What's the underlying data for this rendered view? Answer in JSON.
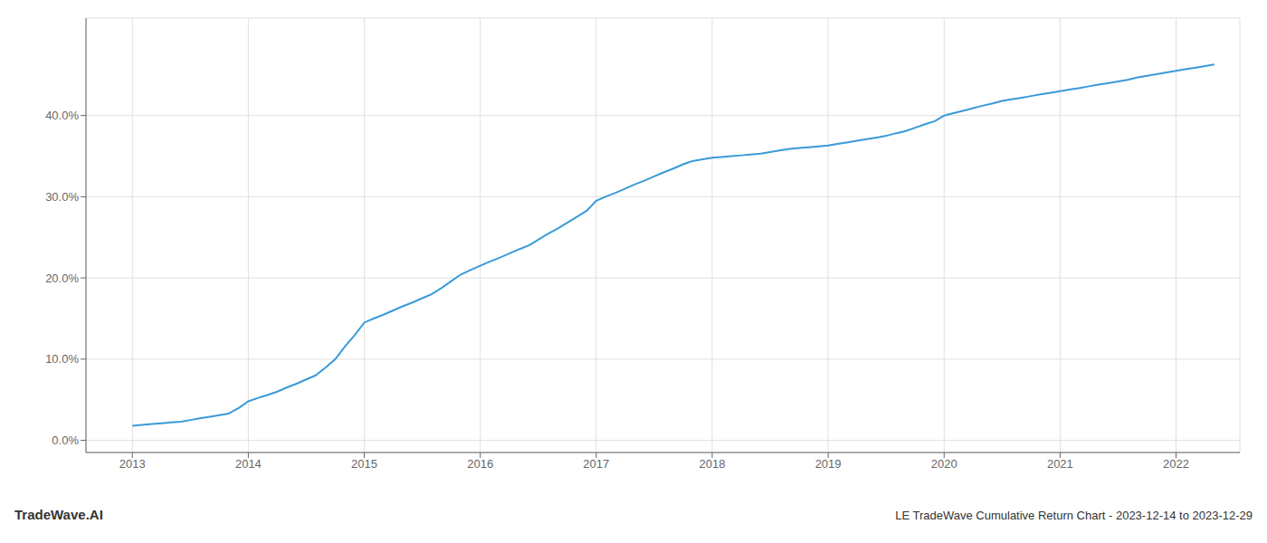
{
  "chart_data": {
    "type": "line",
    "title": "LE TradeWave Cumulative Return Chart - 2023-12-14 to 2023-12-29",
    "annotations": [
      "TradeWave.AI"
    ],
    "x": [
      2013.0,
      2013.08,
      2013.17,
      2013.25,
      2013.33,
      2013.42,
      2013.5,
      2013.58,
      2013.67,
      2013.75,
      2013.83,
      2013.92,
      2014.0,
      2014.08,
      2014.17,
      2014.25,
      2014.33,
      2014.42,
      2014.5,
      2014.58,
      2014.67,
      2014.75,
      2014.83,
      2014.92,
      2015.0,
      2015.08,
      2015.17,
      2015.25,
      2015.33,
      2015.42,
      2015.5,
      2015.58,
      2015.67,
      2015.75,
      2015.83,
      2015.92,
      2016.0,
      2016.08,
      2016.17,
      2016.25,
      2016.33,
      2016.42,
      2016.5,
      2016.58,
      2016.67,
      2016.75,
      2016.83,
      2016.92,
      2017.0,
      2017.08,
      2017.17,
      2017.25,
      2017.33,
      2017.42,
      2017.5,
      2017.58,
      2017.67,
      2017.75,
      2017.83,
      2017.92,
      2018.0,
      2018.08,
      2018.17,
      2018.25,
      2018.33,
      2018.42,
      2018.5,
      2018.58,
      2018.67,
      2018.75,
      2018.83,
      2018.92,
      2019.0,
      2019.08,
      2019.17,
      2019.25,
      2019.33,
      2019.42,
      2019.5,
      2019.58,
      2019.67,
      2019.75,
      2019.83,
      2019.92,
      2020.0,
      2020.08,
      2020.17,
      2020.25,
      2020.33,
      2020.42,
      2020.5,
      2020.58,
      2020.67,
      2020.75,
      2020.83,
      2020.92,
      2021.0,
      2021.08,
      2021.17,
      2021.25,
      2021.33,
      2021.42,
      2021.5,
      2021.58,
      2021.67,
      2021.75,
      2021.83,
      2021.92,
      2022.0,
      2022.08,
      2022.17,
      2022.25,
      2022.33
    ],
    "values": [
      0.018,
      0.019,
      0.02,
      0.021,
      0.022,
      0.023,
      0.025,
      0.027,
      0.029,
      0.031,
      0.033,
      0.04,
      0.048,
      0.052,
      0.056,
      0.06,
      0.065,
      0.07,
      0.075,
      0.08,
      0.09,
      0.1,
      0.115,
      0.13,
      0.145,
      0.15,
      0.155,
      0.16,
      0.165,
      0.17,
      0.175,
      0.18,
      0.188,
      0.196,
      0.204,
      0.21,
      0.215,
      0.22,
      0.225,
      0.23,
      0.235,
      0.24,
      0.247,
      0.254,
      0.261,
      0.268,
      0.275,
      0.283,
      0.295,
      0.3,
      0.305,
      0.31,
      0.315,
      0.32,
      0.325,
      0.33,
      0.335,
      0.34,
      0.344,
      0.346,
      0.348,
      0.349,
      0.35,
      0.351,
      0.352,
      0.353,
      0.355,
      0.357,
      0.359,
      0.36,
      0.361,
      0.362,
      0.363,
      0.365,
      0.367,
      0.369,
      0.371,
      0.373,
      0.375,
      0.378,
      0.381,
      0.385,
      0.389,
      0.393,
      0.4,
      0.403,
      0.406,
      0.409,
      0.412,
      0.415,
      0.418,
      0.42,
      0.422,
      0.424,
      0.426,
      0.428,
      0.43,
      0.432,
      0.434,
      0.436,
      0.438,
      0.44,
      0.442,
      0.444,
      0.447,
      0.449,
      0.451,
      0.453,
      0.455,
      0.457,
      0.459,
      0.461,
      0.463
    ],
    "color": "#3a9ad9",
    "xlim": [
      2012.6,
      2022.55
    ],
    "xticks": [
      2013,
      2014,
      2015,
      2016,
      2017,
      2018,
      2019,
      2020,
      2021,
      2022
    ],
    "ylim": [
      -0.015,
      0.52
    ],
    "yticks": [
      {
        "value": 0.0,
        "label": "0.0%"
      },
      {
        "value": 0.1,
        "label": "10.0%"
      },
      {
        "value": 0.2,
        "label": "20.0%"
      },
      {
        "value": 0.3,
        "label": "30.0%"
      },
      {
        "value": 0.4,
        "label": "40.0%"
      }
    ],
    "grid": true
  }
}
